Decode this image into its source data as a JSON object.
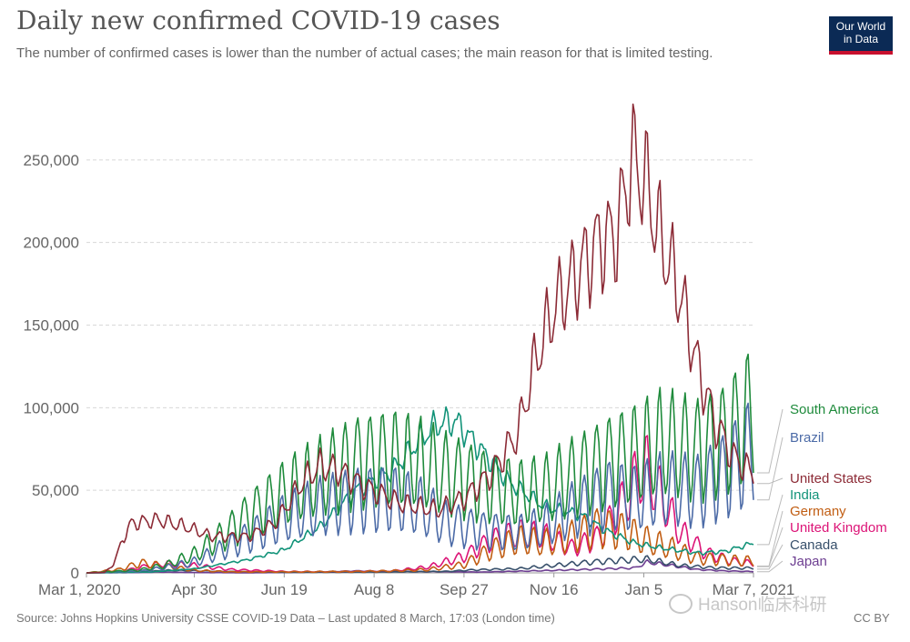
{
  "title": "Daily new confirmed COVID-19 cases",
  "subtitle": "The number of confirmed cases is lower than the number of actual cases; the main reason for that is limited testing.",
  "logo": {
    "line1": "Our World",
    "line2": "in Data",
    "bg": "#0b2a55",
    "accent": "#c8102e"
  },
  "source": "Source: Johns Hopkins University CSSE COVID-19 Data – Last updated 8 March, 17:03 (London time)",
  "license": "CC BY",
  "watermark": {
    "text": "Hanson临床科研",
    "icon": "wechat-icon"
  },
  "chart_data": {
    "type": "line",
    "title": "Daily new confirmed COVID-19 cases",
    "xlabel": "",
    "ylabel": "",
    "x_start": "2020-03-01",
    "x_end": "2021-03-07",
    "days": 371,
    "ylim": [
      0,
      300000
    ],
    "x_ticks": [
      {
        "label": "Mar 1, 2020",
        "day": 0
      },
      {
        "label": "Apr 30",
        "day": 60
      },
      {
        "label": "Jun 19",
        "day": 110
      },
      {
        "label": "Aug 8",
        "day": 160
      },
      {
        "label": "Sep 27",
        "day": 210
      },
      {
        "label": "Nov 16",
        "day": 260
      },
      {
        "label": "Jan 5",
        "day": 310
      },
      {
        "label": "Mar 7, 2021",
        "day": 371
      }
    ],
    "y_ticks": [
      {
        "label": "0",
        "value": 0
      },
      {
        "label": "50,000",
        "value": 50000
      },
      {
        "label": "100,000",
        "value": 100000
      },
      {
        "label": "150,000",
        "value": 150000
      },
      {
        "label": "200,000",
        "value": 200000
      },
      {
        "label": "250,000",
        "value": 250000
      }
    ],
    "series": [
      {
        "name": "Japan",
        "color": "#6d3e91",
        "weekly": 0.2,
        "points": [
          [
            0,
            0
          ],
          [
            30,
            200
          ],
          [
            40,
            500
          ],
          [
            60,
            200
          ],
          [
            90,
            50
          ],
          [
            120,
            300
          ],
          [
            150,
            1200
          ],
          [
            180,
            800
          ],
          [
            220,
            500
          ],
          [
            260,
            1500
          ],
          [
            290,
            2500
          ],
          [
            305,
            3000
          ],
          [
            312,
            6500
          ],
          [
            325,
            4500
          ],
          [
            340,
            2000
          ],
          [
            355,
            1200
          ],
          [
            371,
            800
          ]
        ]
      },
      {
        "name": "Canada",
        "color": "#38506b",
        "weekly": 0.25,
        "points": [
          [
            0,
            0
          ],
          [
            30,
            600
          ],
          [
            45,
            1500
          ],
          [
            60,
            1300
          ],
          [
            80,
            800
          ],
          [
            110,
            300
          ],
          [
            140,
            400
          ],
          [
            170,
            500
          ],
          [
            200,
            900
          ],
          [
            215,
            1800
          ],
          [
            240,
            2500
          ],
          [
            260,
            4500
          ],
          [
            280,
            6500
          ],
          [
            295,
            7500
          ],
          [
            305,
            8000
          ],
          [
            312,
            8200
          ],
          [
            330,
            4500
          ],
          [
            350,
            3000
          ],
          [
            371,
            2900
          ]
        ]
      },
      {
        "name": "United Kingdom",
        "color": "#dc1477",
        "weekly": 0.35,
        "points": [
          [
            0,
            0
          ],
          [
            20,
            1000
          ],
          [
            35,
            4500
          ],
          [
            45,
            5500
          ],
          [
            60,
            4500
          ],
          [
            80,
            2000
          ],
          [
            110,
            800
          ],
          [
            140,
            700
          ],
          [
            170,
            1200
          ],
          [
            190,
            3500
          ],
          [
            210,
            10000
          ],
          [
            225,
            20000
          ],
          [
            240,
            24000
          ],
          [
            255,
            22000
          ],
          [
            270,
            15000
          ],
          [
            285,
            22000
          ],
          [
            300,
            45000
          ],
          [
            310,
            65000
          ],
          [
            315,
            55000
          ],
          [
            330,
            25000
          ],
          [
            345,
            12000
          ],
          [
            360,
            7000
          ],
          [
            371,
            5500
          ]
        ]
      },
      {
        "name": "Germany",
        "color": "#c15d12",
        "weekly": 0.45,
        "points": [
          [
            0,
            0
          ],
          [
            18,
            2000
          ],
          [
            30,
            6000
          ],
          [
            45,
            4000
          ],
          [
            60,
            1500
          ],
          [
            80,
            600
          ],
          [
            110,
            600
          ],
          [
            150,
            800
          ],
          [
            170,
            1200
          ],
          [
            190,
            2000
          ],
          [
            210,
            5000
          ],
          [
            225,
            14000
          ],
          [
            240,
            20000
          ],
          [
            255,
            18000
          ],
          [
            270,
            22000
          ],
          [
            285,
            28000
          ],
          [
            300,
            25000
          ],
          [
            310,
            20000
          ],
          [
            325,
            15000
          ],
          [
            340,
            9000
          ],
          [
            355,
            8000
          ],
          [
            371,
            7000
          ]
        ]
      },
      {
        "name": "India",
        "color": "#129379",
        "weekly": 0.08,
        "points": [
          [
            0,
            0
          ],
          [
            35,
            500
          ],
          [
            60,
            2500
          ],
          [
            90,
            8000
          ],
          [
            110,
            14000
          ],
          [
            130,
            28000
          ],
          [
            150,
            50000
          ],
          [
            170,
            62000
          ],
          [
            185,
            80000
          ],
          [
            195,
            90000
          ],
          [
            205,
            92000
          ],
          [
            215,
            80000
          ],
          [
            235,
            55000
          ],
          [
            255,
            40000
          ],
          [
            275,
            35000
          ],
          [
            290,
            25000
          ],
          [
            305,
            18000
          ],
          [
            320,
            15000
          ],
          [
            340,
            12000
          ],
          [
            355,
            13000
          ],
          [
            371,
            18000
          ]
        ]
      },
      {
        "name": "Brazil",
        "color": "#4c6ba7",
        "weekly": 0.45,
        "points": [
          [
            0,
            0
          ],
          [
            30,
            1000
          ],
          [
            45,
            3500
          ],
          [
            60,
            6500
          ],
          [
            75,
            14000
          ],
          [
            90,
            22000
          ],
          [
            110,
            33000
          ],
          [
            130,
            40000
          ],
          [
            150,
            45000
          ],
          [
            170,
            45000
          ],
          [
            185,
            40000
          ],
          [
            200,
            30000
          ],
          [
            220,
            26000
          ],
          [
            240,
            24000
          ],
          [
            255,
            28000
          ],
          [
            270,
            38000
          ],
          [
            290,
            48000
          ],
          [
            305,
            45000
          ],
          [
            320,
            50000
          ],
          [
            340,
            50000
          ],
          [
            355,
            60000
          ],
          [
            371,
            75000
          ]
        ]
      },
      {
        "name": "South America",
        "color": "#1f8b3c",
        "weekly": 0.42,
        "points": [
          [
            0,
            0
          ],
          [
            30,
            1800
          ],
          [
            45,
            5000
          ],
          [
            60,
            11000
          ],
          [
            75,
            22000
          ],
          [
            90,
            35000
          ],
          [
            110,
            48000
          ],
          [
            130,
            58000
          ],
          [
            150,
            68000
          ],
          [
            170,
            70000
          ],
          [
            185,
            66000
          ],
          [
            200,
            60000
          ],
          [
            220,
            54000
          ],
          [
            240,
            48000
          ],
          [
            255,
            50000
          ],
          [
            270,
            58000
          ],
          [
            290,
            68000
          ],
          [
            305,
            72000
          ],
          [
            320,
            78000
          ],
          [
            340,
            75000
          ],
          [
            355,
            82000
          ],
          [
            371,
            98000
          ]
        ]
      },
      {
        "name": "United States",
        "color": "#8c2b36",
        "weekly": 0.13,
        "points": [
          [
            0,
            0
          ],
          [
            10,
            300
          ],
          [
            15,
            5000
          ],
          [
            20,
            20000
          ],
          [
            25,
            30000
          ],
          [
            40,
            32000
          ],
          [
            55,
            28000
          ],
          [
            70,
            22000
          ],
          [
            90,
            22000
          ],
          [
            105,
            30000
          ],
          [
            120,
            55000
          ],
          [
            130,
            65000
          ],
          [
            140,
            62000
          ],
          [
            155,
            52000
          ],
          [
            175,
            42000
          ],
          [
            195,
            38000
          ],
          [
            210,
            45000
          ],
          [
            225,
            60000
          ],
          [
            240,
            85000
          ],
          [
            250,
            130000
          ],
          [
            260,
            160000
          ],
          [
            272,
            180000
          ],
          [
            285,
            200000
          ],
          [
            295,
            205000
          ],
          [
            303,
            250000
          ],
          [
            310,
            240000
          ],
          [
            320,
            200000
          ],
          [
            330,
            170000
          ],
          [
            340,
            125000
          ],
          [
            350,
            90000
          ],
          [
            360,
            70000
          ],
          [
            371,
            60000
          ]
        ]
      }
    ],
    "legend": [
      {
        "name": "South America",
        "color": "#1f8b3c",
        "label_y": 455,
        "line_y": 453
      },
      {
        "name": "Brazil",
        "color": "#4c6ba7",
        "label_y": 486,
        "line_y": 484
      },
      {
        "name": "United States",
        "color": "#8c2b36",
        "label_y": 531,
        "line_y": 541
      },
      {
        "name": "India",
        "color": "#129379",
        "label_y": 549,
        "line_y": 596
      },
      {
        "name": "Germany",
        "color": "#c15d12",
        "label_y": 567,
        "line_y": 617
      },
      {
        "name": "United Kingdom",
        "color": "#dc1477",
        "label_y": 585,
        "line_y": 621
      },
      {
        "name": "Canada",
        "color": "#38506b",
        "label_y": 604,
        "line_y": 624
      },
      {
        "name": "Japan",
        "color": "#6d3e91",
        "label_y": 622,
        "line_y": 627
      }
    ]
  }
}
